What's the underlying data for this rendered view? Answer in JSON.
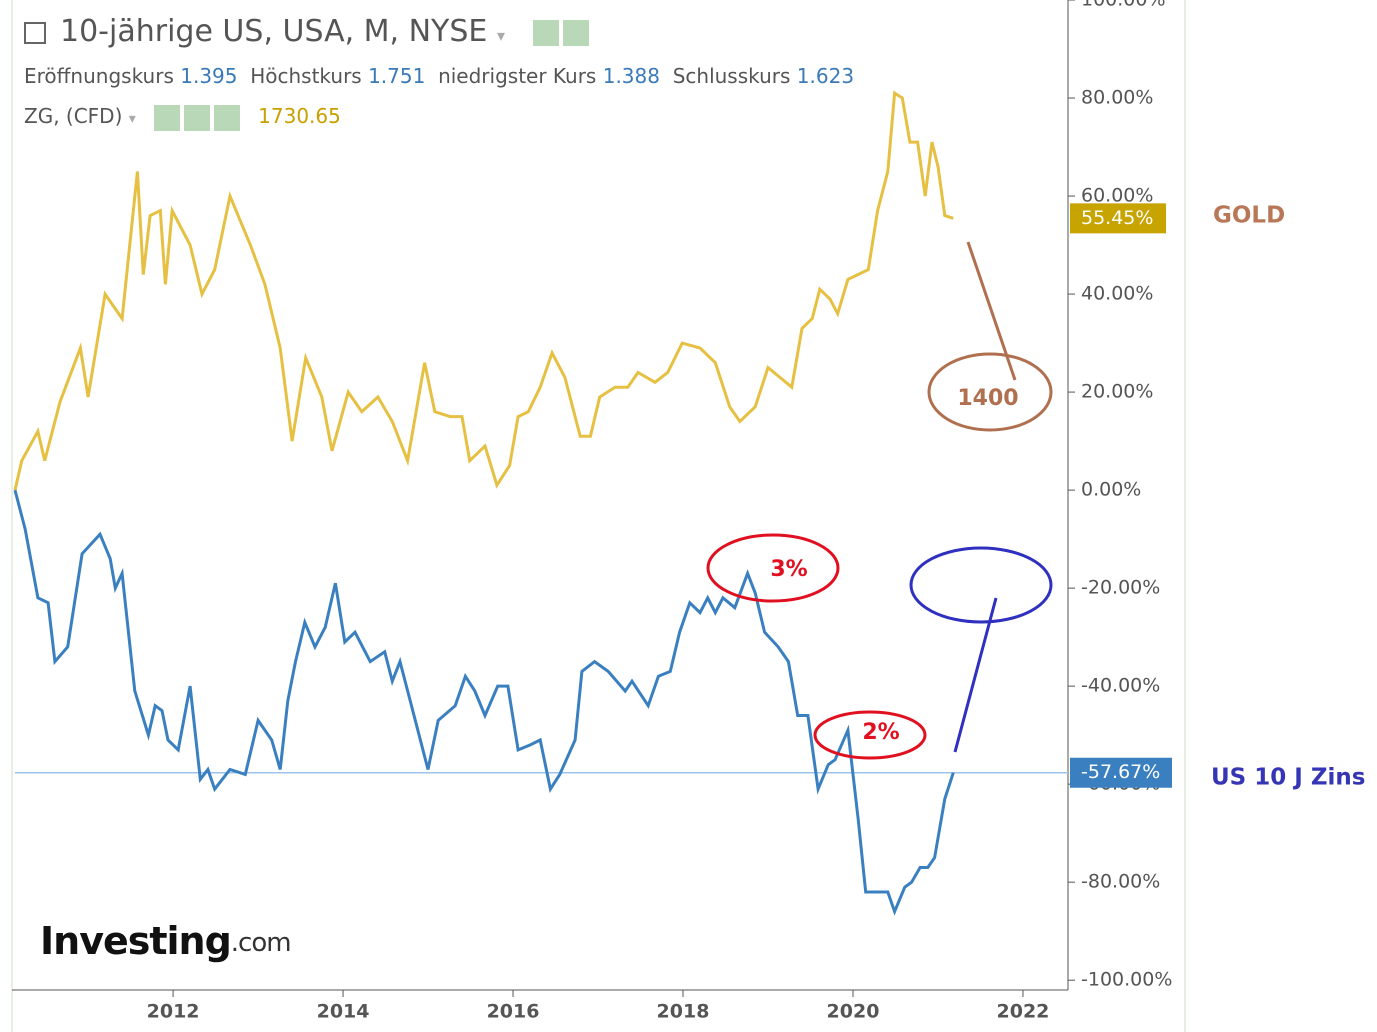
{
  "header": {
    "title": "10-jährige US, USA, M, NYSE",
    "ohlc": [
      {
        "label": "Eröffnungskurs",
        "value": "1.395"
      },
      {
        "label": "Höchstkurs",
        "value": "1.751"
      },
      {
        "label": "niedrigster Kurs",
        "value": "1.388"
      },
      {
        "label": "Schlusskurs",
        "value": "1.623"
      }
    ],
    "overlay": {
      "label": "ZG, (CFD)",
      "value": "1730.65"
    }
  },
  "logo": {
    "brand": "Investing",
    "suffix": ".com"
  },
  "chart_data": {
    "type": "line",
    "series": [
      {
        "name": "GOLD",
        "color": "#e6c042",
        "badge_color": "#c8a400",
        "last_label": "55.45%",
        "x": [
          2010.14,
          2010.22,
          2010.41,
          2010.49,
          2010.67,
          2010.91,
          2011.0,
          2011.2,
          2011.4,
          2011.58,
          2011.65,
          2011.73,
          2011.85,
          2011.91,
          2011.99,
          2012.2,
          2012.34,
          2012.49,
          2012.67,
          2012.91,
          2013.08,
          2013.26,
          2013.4,
          2013.56,
          2013.75,
          2013.87,
          2014.06,
          2014.22,
          2014.41,
          2014.58,
          2014.76,
          2014.96,
          2015.08,
          2015.26,
          2015.4,
          2015.49,
          2015.67,
          2015.81,
          2015.96,
          2016.06,
          2016.18,
          2016.32,
          2016.46,
          2016.61,
          2016.79,
          2016.91,
          2017.02,
          2017.2,
          2017.35,
          2017.47,
          2017.67,
          2017.82,
          2017.99,
          2018.2,
          2018.38,
          2018.55,
          2018.67,
          2018.85,
          2019.0,
          2019.14,
          2019.28,
          2019.4,
          2019.52,
          2019.61,
          2019.73,
          2019.82,
          2019.94,
          2020.06,
          2020.18,
          2020.29,
          2020.41,
          2020.49,
          2020.58,
          2020.67,
          2020.76,
          2020.85,
          2020.93,
          2021.0,
          2021.08,
          2021.18
        ],
        "values": [
          0,
          6,
          12,
          6,
          18,
          29,
          19,
          40,
          35,
          65,
          44,
          56,
          57,
          42,
          57,
          50,
          40,
          45,
          60,
          50,
          42,
          29,
          10,
          27,
          19,
          8,
          20,
          16,
          19,
          14,
          6,
          26,
          16,
          15,
          15,
          6,
          9,
          1,
          5,
          15,
          16,
          21,
          28,
          23,
          11,
          11,
          19,
          21,
          21,
          24,
          22,
          24,
          30,
          29,
          26,
          17,
          14,
          17,
          25,
          23,
          21,
          33,
          35,
          41,
          39,
          36,
          43,
          44,
          45,
          57,
          65,
          81,
          80,
          71,
          71,
          60,
          71,
          66,
          56,
          55.45
        ]
      },
      {
        "name": "US 10 J Zins",
        "color": "#3a80c0",
        "badge_color": "#3a80c0",
        "last_label": "-57.67%",
        "x": [
          2010.14,
          2010.26,
          2010.41,
          2010.53,
          2010.61,
          2010.76,
          2010.93,
          2011.14,
          2011.26,
          2011.32,
          2011.4,
          2011.55,
          2011.71,
          2011.79,
          2011.87,
          2011.94,
          2012.06,
          2012.2,
          2012.32,
          2012.41,
          2012.49,
          2012.67,
          2012.85,
          2013.0,
          2013.16,
          2013.26,
          2013.35,
          2013.44,
          2013.55,
          2013.67,
          2013.79,
          2013.91,
          2014.02,
          2014.14,
          2014.32,
          2014.49,
          2014.58,
          2014.67,
          2014.79,
          2015.0,
          2015.12,
          2015.32,
          2015.44,
          2015.55,
          2015.67,
          2015.82,
          2015.94,
          2016.06,
          2016.2,
          2016.32,
          2016.44,
          2016.55,
          2016.73,
          2016.81,
          2016.96,
          2017.12,
          2017.32,
          2017.4,
          2017.59,
          2017.71,
          2017.85,
          2017.96,
          2018.08,
          2018.2,
          2018.29,
          2018.38,
          2018.47,
          2018.61,
          2018.76,
          2018.85,
          2018.96,
          2019.12,
          2019.24,
          2019.35,
          2019.47,
          2019.59,
          2019.71,
          2019.79,
          2019.94,
          2020.06,
          2020.15,
          2020.32,
          2020.41,
          2020.49,
          2020.61,
          2020.69,
          2020.79,
          2020.88,
          2020.96,
          2021.08,
          2021.18
        ],
        "values": [
          0,
          -8,
          -22,
          -23,
          -35,
          -32,
          -13,
          -9,
          -14,
          -20,
          -17,
          -41,
          -50,
          -44,
          -45,
          -51,
          -53,
          -40,
          -59,
          -57,
          -61,
          -57,
          -58,
          -47,
          -51,
          -57,
          -43,
          -35,
          -27,
          -32,
          -28,
          -19,
          -31,
          -29,
          -35,
          -33,
          -39,
          -35,
          -43,
          -57,
          -47,
          -44,
          -38,
          -41,
          -46,
          -40,
          -40,
          -53,
          -52,
          -51,
          -61,
          -58,
          -51,
          -37,
          -35,
          -37,
          -41,
          -39,
          -44,
          -38,
          -37,
          -29,
          -23,
          -25,
          -22,
          -25,
          -22,
          -24,
          -17,
          -21,
          -29,
          -32,
          -35,
          -46,
          -46,
          -61,
          -56,
          -55,
          -49,
          -67,
          -82,
          -82,
          -82,
          -86,
          -81,
          -80,
          -77,
          -77,
          -75,
          -63,
          -57.67
        ]
      }
    ],
    "annotations": {
      "gold_target": "1400",
      "peak": "3%",
      "low": "2%"
    },
    "xlim": [
      2010.14,
      2022.53
    ],
    "xticks": [
      2012,
      2014,
      2016,
      2018,
      2020,
      2022
    ],
    "ylim": [
      -102,
      100
    ],
    "yticks": [
      {
        "value": 100,
        "label": "100.00%"
      },
      {
        "value": 80,
        "label": "80.00%"
      },
      {
        "value": 60,
        "label": "60.00%"
      },
      {
        "value": 40,
        "label": "40.00%"
      },
      {
        "value": 20,
        "label": "20.00%"
      },
      {
        "value": 0,
        "label": "0.00%"
      },
      {
        "value": -20,
        "label": "-20.00%"
      },
      {
        "value": -40,
        "label": "-40.00%"
      },
      {
        "value": -60,
        "label": "-60.00%"
      },
      {
        "value": -80,
        "label": "-80.00%"
      },
      {
        "value": -100,
        "label": "-100.00%"
      }
    ]
  }
}
